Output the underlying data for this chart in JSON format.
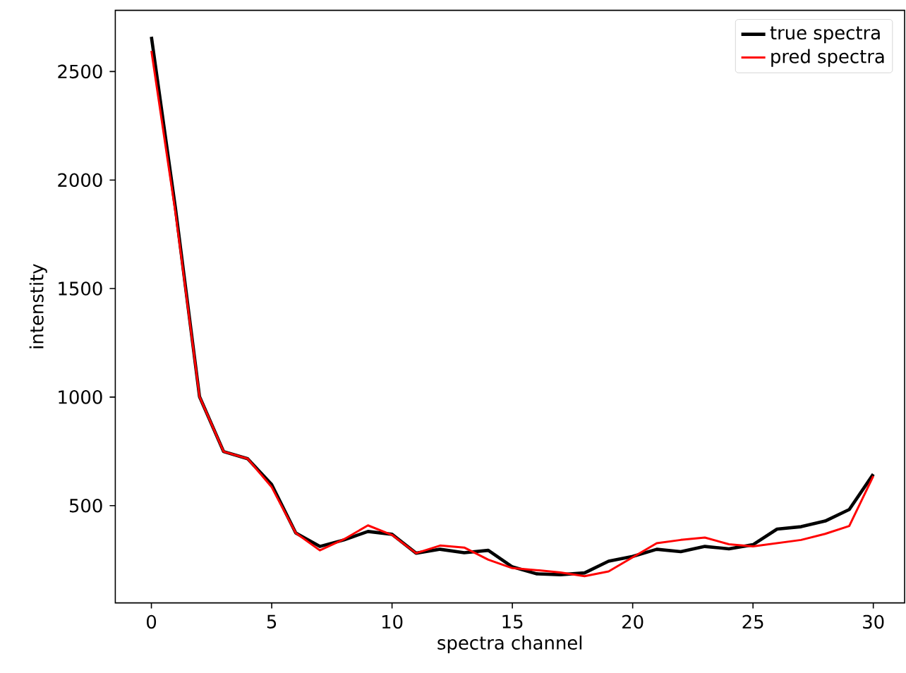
{
  "chart_data": {
    "type": "line",
    "xlabel": "spectra channel",
    "ylabel": "intenstity",
    "x": [
      0,
      1,
      2,
      3,
      4,
      5,
      6,
      7,
      8,
      9,
      10,
      11,
      12,
      13,
      14,
      15,
      16,
      17,
      18,
      19,
      20,
      21,
      22,
      23,
      24,
      25,
      26,
      27,
      28,
      29,
      30
    ],
    "series": [
      {
        "name": "true spectra",
        "color": "#000000",
        "values": [
          2660,
          1870,
          1002,
          749,
          716,
          597,
          374,
          312,
          342,
          381,
          368,
          281,
          299,
          283,
          294,
          218,
          186,
          182,
          190,
          244,
          266,
          299,
          288,
          312,
          301,
          320,
          392,
          403,
          429,
          482,
          645
        ]
      },
      {
        "name": "pred spectra",
        "color": "#ff0000",
        "values": [
          2595,
          1850,
          1002,
          749,
          716,
          585,
          374,
          294,
          345,
          409,
          365,
          281,
          316,
          307,
          251,
          212,
          203,
          192,
          175,
          197,
          262,
          327,
          342,
          353,
          322,
          312,
          327,
          342,
          370,
          406,
          636
        ]
      }
    ],
    "xlim": [
      -1.5,
      31.3
    ],
    "ylim": [
      52,
      2782
    ],
    "xticks": [
      0,
      5,
      10,
      15,
      20,
      25,
      30
    ],
    "yticks": [
      500,
      1000,
      1500,
      2000,
      2500
    ],
    "legend": "top right",
    "grid": false,
    "marker": "none",
    "line_style": "solid"
  }
}
